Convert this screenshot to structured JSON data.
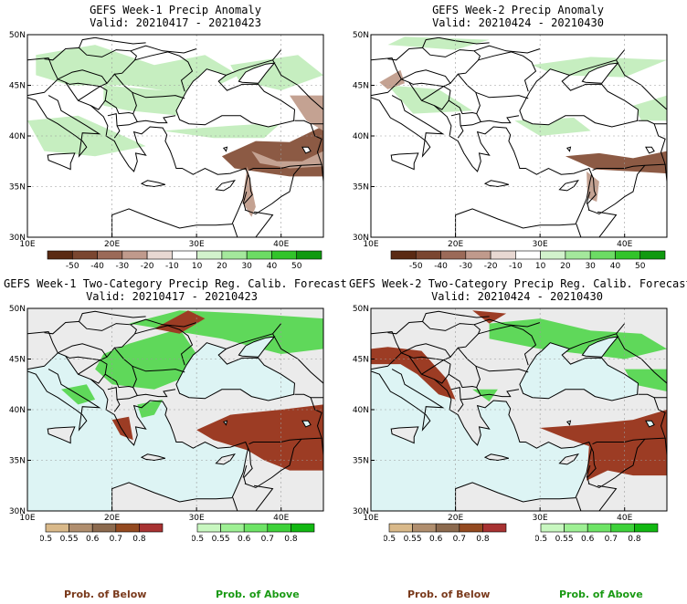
{
  "panels": [
    {
      "title": "GEFS Week-1 Precip Anomaly",
      "valid": "Valid: 20210417 - 20210423",
      "type": "anomaly"
    },
    {
      "title": "GEFS Week-2 Precip Anomaly",
      "valid": "Valid: 20210424 - 20210430",
      "type": "anomaly"
    },
    {
      "title": "GEFS Week-1 Two-Category Precip Reg. Calib. Forecast",
      "valid": "Valid: 20210417 - 20210423",
      "type": "probability"
    },
    {
      "title": "GEFS Week-2 Two-Category Precip Reg. Calib. Forecast",
      "valid": "Valid: 20210424 - 20210430",
      "type": "probability"
    }
  ],
  "axes": {
    "lat_labels": [
      "50N",
      "45N",
      "40N",
      "35N",
      "30N"
    ],
    "lon_labels": [
      "10E",
      "20E",
      "30E",
      "40E"
    ]
  },
  "anomaly_colorbar": {
    "ticks": [
      "-50",
      "-40",
      "-30",
      "-20",
      "-10",
      "10",
      "20",
      "30",
      "40",
      "50"
    ],
    "colors": [
      "#5a2a14",
      "#7a4630",
      "#9b6a58",
      "#c09a8c",
      "#e8d8d2",
      "#ffffff",
      "#d2f2cc",
      "#a4e89c",
      "#6cdc64",
      "#32c42a",
      "#109a10"
    ]
  },
  "prob_colorbar_below": {
    "ticks": [
      "0.5",
      "0.55",
      "0.6",
      "0.7",
      "0.8"
    ],
    "colors": [
      "#d9b98a",
      "#b08e6e",
      "#8c6a4e",
      "#944a20",
      "#a83232"
    ],
    "label": "Prob. of Below"
  },
  "prob_colorbar_above": {
    "ticks": [
      "0.5",
      "0.55",
      "0.6",
      "0.7",
      "0.8"
    ],
    "colors": [
      "#c8f7c0",
      "#9ef094",
      "#6ee466",
      "#3ed23a",
      "#12b812"
    ],
    "label": "Prob. of Above"
  },
  "colors": {
    "land_background": "#ebebeb",
    "sea_background": "#ddf4f4",
    "border_line": "#000000"
  }
}
